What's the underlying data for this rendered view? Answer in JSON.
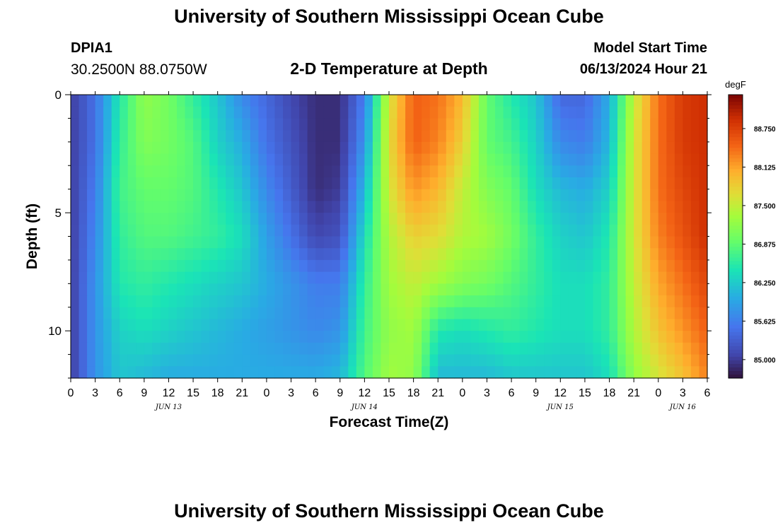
{
  "header": {
    "title": "University of Southern Mississippi Ocean Cube",
    "station_id": "DPIA1",
    "station_coords": "30.2500N  88.0750W",
    "chart_title": "2-D Temperature at Depth",
    "model_label": "Model Start Time",
    "model_time": "06/13/2024 Hour 21"
  },
  "footer": {
    "title": "University of Southern Mississippi Ocean Cube"
  },
  "chart_data": {
    "type": "heatmap",
    "title": "2-D Temperature at Depth",
    "xlabel": "Forecast Time(Z)",
    "ylabel": "Depth (ft)",
    "units": "degF",
    "x_tick_labels": [
      "0",
      "3",
      "6",
      "9",
      "12",
      "15",
      "18",
      "21",
      "0",
      "3",
      "6",
      "9",
      "12",
      "15",
      "18",
      "21",
      "0",
      "3",
      "6",
      "9",
      "12",
      "15",
      "18",
      "21",
      "0",
      "3",
      "6"
    ],
    "x_day_labels": [
      {
        "label": "JUN 13",
        "tick_index": 4
      },
      {
        "label": "JUN 14",
        "tick_index": 12
      },
      {
        "label": "JUN 15",
        "tick_index": 20
      },
      {
        "label": "JUN 16",
        "tick_index": 25
      }
    ],
    "x_range_hours": [
      0,
      78
    ],
    "y_ticks": [
      0,
      5,
      10
    ],
    "y_range_ft": [
      0,
      12
    ],
    "colorbar_ticks": [
      "85.000",
      "85.625",
      "86.250",
      "86.875",
      "87.500",
      "88.125",
      "88.750"
    ],
    "colorbar_range": [
      84.7,
      89.3
    ],
    "hours": [
      0,
      3,
      6,
      9,
      12,
      15,
      18,
      21,
      24,
      27,
      30,
      33,
      36,
      39,
      42,
      45,
      48,
      51,
      54,
      57,
      60,
      63,
      66,
      69,
      72,
      75,
      78
    ],
    "depths_ft": [
      0,
      2,
      4,
      6,
      8,
      10,
      12
    ],
    "values": [
      [
        85.0,
        85.5,
        86.5,
        87.2,
        87.0,
        86.6,
        86.2,
        85.7,
        85.4,
        85.1,
        84.9,
        84.9,
        85.6,
        87.6,
        88.5,
        88.4,
        88.0,
        86.9,
        86.5,
        86.2,
        85.4,
        85.4,
        86.0,
        87.5,
        88.4,
        88.8,
        88.9
      ],
      [
        85.0,
        85.5,
        86.6,
        87.1,
        87.0,
        86.8,
        86.3,
        86.0,
        85.5,
        85.2,
        84.9,
        84.9,
        85.8,
        87.7,
        88.5,
        88.3,
        87.8,
        86.9,
        86.7,
        86.3,
        85.7,
        85.6,
        86.1,
        87.6,
        88.4,
        88.8,
        88.9
      ],
      [
        85.0,
        85.6,
        86.7,
        86.9,
        86.9,
        86.8,
        86.5,
        86.2,
        85.7,
        85.3,
        84.9,
        85.0,
        86.1,
        87.6,
        88.2,
        88.0,
        87.5,
        87.1,
        86.9,
        86.4,
        86.1,
        86.0,
        86.3,
        87.6,
        88.4,
        88.7,
        88.9
      ],
      [
        85.0,
        85.7,
        86.6,
        86.8,
        86.8,
        86.7,
        86.6,
        86.4,
        85.9,
        85.5,
        85.1,
        85.2,
        86.4,
        87.4,
        87.8,
        87.7,
        87.4,
        87.3,
        87.0,
        86.6,
        86.3,
        86.2,
        86.5,
        87.6,
        88.3,
        88.6,
        88.9
      ],
      [
        85.0,
        85.8,
        86.5,
        86.6,
        86.5,
        86.4,
        86.3,
        86.2,
        86.0,
        85.8,
        85.6,
        85.6,
        86.6,
        87.3,
        87.5,
        87.3,
        87.1,
        87.0,
        86.8,
        86.6,
        86.4,
        86.4,
        86.6,
        87.5,
        88.1,
        88.4,
        88.7
      ],
      [
        85.0,
        85.8,
        86.3,
        86.4,
        86.3,
        86.2,
        86.1,
        86.0,
        85.9,
        85.8,
        85.7,
        85.8,
        86.7,
        87.2,
        87.3,
        86.5,
        86.4,
        86.5,
        86.6,
        86.5,
        86.4,
        86.4,
        86.6,
        87.4,
        87.9,
        88.2,
        88.5
      ],
      [
        85.0,
        85.8,
        86.2,
        86.1,
        86.0,
        86.0,
        86.0,
        86.0,
        86.0,
        86.0,
        86.0,
        86.1,
        86.8,
        87.3,
        87.2,
        86.1,
        86.1,
        86.1,
        86.2,
        86.2,
        86.2,
        86.2,
        86.4,
        87.2,
        87.6,
        87.9,
        88.3
      ]
    ]
  }
}
